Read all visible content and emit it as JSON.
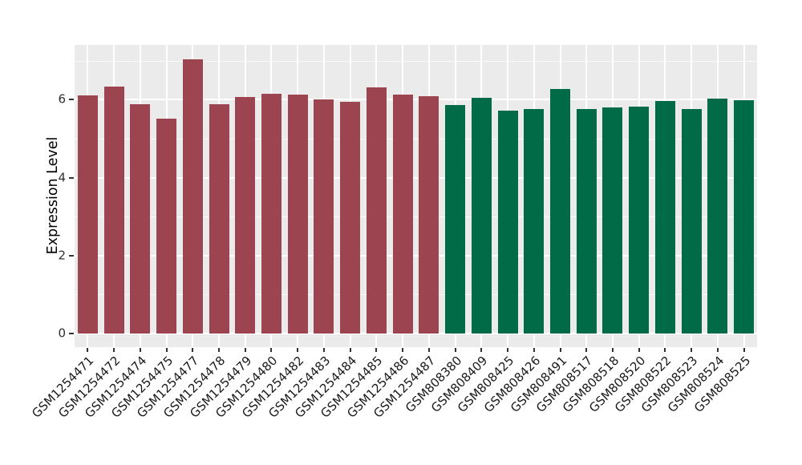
{
  "figure": {
    "background": "#FFFFFF",
    "panel_background": "#EBEBEB",
    "grid_color": "#FFFFFF",
    "tick_color": "#333333",
    "text_color": "#1A1A1A"
  },
  "chart_data": {
    "type": "bar",
    "title": "",
    "xlabel": "",
    "ylabel": "Expression Level",
    "ylim": [
      -0.35,
      7.4
    ],
    "yticks": [
      0,
      2,
      4,
      6
    ],
    "minor_yticks": [
      1,
      3,
      5,
      7
    ],
    "grid": true,
    "legend_position": "none",
    "categories": [
      "GSM1254471",
      "GSM1254472",
      "GSM1254474",
      "GSM1254475",
      "GSM1254477",
      "GSM1254478",
      "GSM1254479",
      "GSM1254480",
      "GSM1254482",
      "GSM1254483",
      "GSM1254484",
      "GSM1254485",
      "GSM1254486",
      "GSM1254487",
      "GSM808380",
      "GSM808409",
      "GSM808425",
      "GSM808426",
      "GSM808491",
      "GSM808517",
      "GSM808518",
      "GSM808520",
      "GSM808522",
      "GSM808523",
      "GSM808524",
      "GSM808525"
    ],
    "values": [
      6.12,
      6.34,
      5.89,
      5.51,
      7.03,
      5.88,
      6.06,
      6.16,
      6.13,
      6.0,
      5.94,
      6.31,
      6.13,
      6.1,
      5.86,
      6.04,
      5.73,
      5.77,
      6.27,
      5.77,
      5.8,
      5.82,
      5.96,
      5.77,
      6.03,
      5.99
    ],
    "groups": [
      0,
      0,
      0,
      0,
      0,
      0,
      0,
      0,
      0,
      0,
      0,
      0,
      0,
      0,
      1,
      1,
      1,
      1,
      1,
      1,
      1,
      1,
      1,
      1,
      1,
      1
    ],
    "palette": [
      "#9C4450",
      "#016B47"
    ]
  }
}
